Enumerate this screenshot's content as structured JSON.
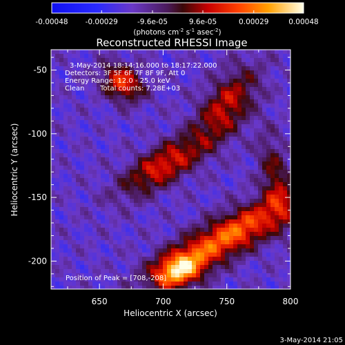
{
  "chart_data": {
    "type": "heatmap",
    "title": "Reconstructed RHESSI Image",
    "xlabel": "Heliocentric X (arcsec)",
    "ylabel": "Heliocentric Y (arcsec)",
    "xlim": [
      612,
      800
    ],
    "ylim": [
      -222,
      -34
    ],
    "x_ticks": [
      650,
      700,
      750,
      800
    ],
    "y_ticks": [
      -50,
      -100,
      -150,
      -200
    ],
    "colorbar": {
      "ticks": [
        -0.00048,
        -0.00029,
        -9.6e-05,
        9.6e-05,
        0.00029,
        0.00048
      ],
      "tick_labels": [
        "-0.00048",
        "-0.00029",
        "-9.6e-05",
        "9.6e-05",
        "0.00029",
        "0.00048"
      ],
      "units_label": "(photons cm",
      "units_exp1": "-2",
      "units_mid": " s",
      "units_exp2": "-1",
      "units_mid2": " asec",
      "units_exp3": "-2",
      "units_end": ")"
    },
    "annotations": {
      "time_range": "3-May-2014 18:14:16.000 to 18:17:22.000",
      "detectors": "Detectors: 3F 5F 6F 7F 8F 9F, Att 0",
      "energy": "Energy Range: 12.0 - 25.0 keV",
      "method": "Clean",
      "counts": "Total counts: 7.28E+03",
      "peak": "Position of Peak = [708,-208]"
    },
    "sources": [
      {
        "x": 668,
        "y": -60,
        "peak": 0.00038,
        "sx": 12,
        "sy": 9,
        "angle": -35
      },
      {
        "x": 700,
        "y": -125,
        "peak": 0.00034,
        "sx": 26,
        "sy": 10,
        "angle": 32
      },
      {
        "x": 752,
        "y": -180,
        "peak": 0.00045,
        "sx": 40,
        "sy": 11,
        "angle": 28
      },
      {
        "x": 712,
        "y": -208,
        "peak": 0.00047,
        "sx": 14,
        "sy": 9,
        "angle": 20
      },
      {
        "x": 750,
        "y": -78,
        "peak": 0.0003,
        "sx": 24,
        "sy": 12,
        "angle": 55
      },
      {
        "x": 788,
        "y": -135,
        "peak": 0.00022,
        "sx": 8,
        "sy": 24,
        "angle": 10
      }
    ]
  },
  "footer": {
    "timestamp": "3-May-2014 21:05"
  }
}
